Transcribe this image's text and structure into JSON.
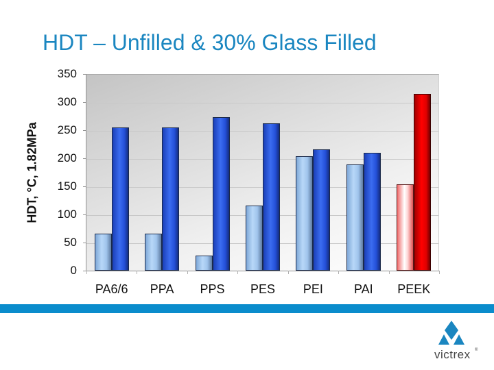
{
  "title": "HDT – Unfilled & 30% Glass Filled",
  "chart_data": {
    "type": "bar",
    "title": "HDT – Unfilled & 30% Glass Filled",
    "xlabel": "",
    "ylabel": "HDT, °C, 1.82MPa",
    "ylim": [
      0,
      350
    ],
    "yticks": [
      "0",
      "50",
      "100",
      "150",
      "200",
      "250",
      "300",
      "350"
    ],
    "grid": true,
    "legend": "none",
    "categories": [
      "PA6/6",
      "PPA",
      "PPS",
      "PES",
      "PEI",
      "PAI",
      "PEEK"
    ],
    "series": [
      {
        "name": "Unfilled",
        "values": [
          66,
          66,
          27,
          116,
          204,
          189,
          154
        ]
      },
      {
        "name": "30% Glass Filled",
        "values": [
          255,
          255,
          273,
          262,
          216,
          210,
          315
        ]
      }
    ],
    "colors": {
      "unfilled": "#a0c4ec",
      "filled": "#2f5ee6",
      "peek_unfilled": "#ffd0d0",
      "peek_filled": "#ff0000"
    }
  },
  "footer": {
    "band_color": "#0a8ccc",
    "logo_text": "victrex",
    "logo_mark": "®"
  }
}
